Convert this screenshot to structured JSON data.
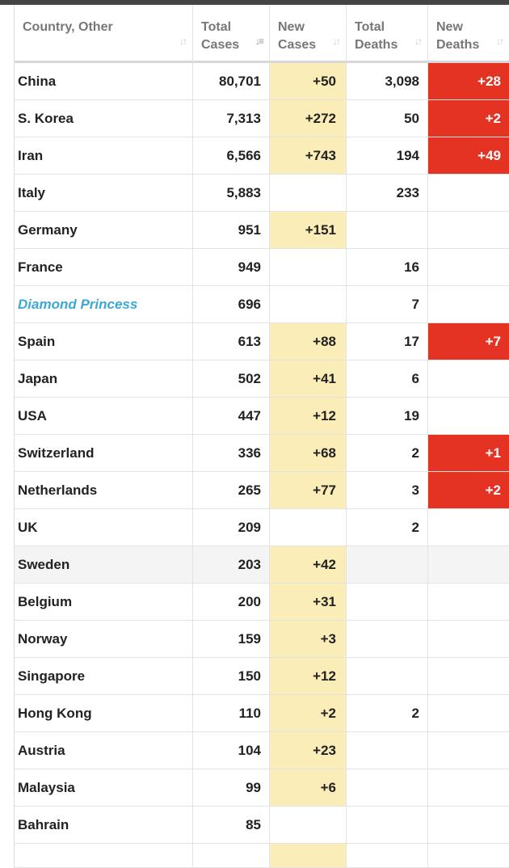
{
  "header": {
    "country": "Country, Other",
    "total_cases": "Total Cases",
    "new_cases": "New Cases",
    "total_deaths": "Total Deaths",
    "new_deaths": "New Deaths"
  },
  "colors": {
    "new_cases_bg": "#fbedb8",
    "new_deaths_bg": "#e53323",
    "link": "#3ba8d6"
  },
  "rows": [
    {
      "country": "China",
      "total_cases": "80,701",
      "new_cases": "+50",
      "total_deaths": "3,098",
      "new_deaths": "+28"
    },
    {
      "country": "S. Korea",
      "total_cases": "7,313",
      "new_cases": "+272",
      "total_deaths": "50",
      "new_deaths": "+2"
    },
    {
      "country": "Iran",
      "total_cases": "6,566",
      "new_cases": "+743",
      "total_deaths": "194",
      "new_deaths": "+49"
    },
    {
      "country": "Italy",
      "total_cases": "5,883",
      "new_cases": "",
      "total_deaths": "233",
      "new_deaths": ""
    },
    {
      "country": "Germany",
      "total_cases": "951",
      "new_cases": "+151",
      "total_deaths": "",
      "new_deaths": ""
    },
    {
      "country": "France",
      "total_cases": "949",
      "new_cases": "",
      "total_deaths": "16",
      "new_deaths": ""
    },
    {
      "country": "Diamond Princess",
      "total_cases": "696",
      "new_cases": "",
      "total_deaths": "7",
      "new_deaths": "",
      "link": true
    },
    {
      "country": "Spain",
      "total_cases": "613",
      "new_cases": "+88",
      "total_deaths": "17",
      "new_deaths": "+7"
    },
    {
      "country": "Japan",
      "total_cases": "502",
      "new_cases": "+41",
      "total_deaths": "6",
      "new_deaths": ""
    },
    {
      "country": "USA",
      "total_cases": "447",
      "new_cases": "+12",
      "total_deaths": "19",
      "new_deaths": ""
    },
    {
      "country": "Switzerland",
      "total_cases": "336",
      "new_cases": "+68",
      "total_deaths": "2",
      "new_deaths": "+1"
    },
    {
      "country": "Netherlands",
      "total_cases": "265",
      "new_cases": "+77",
      "total_deaths": "3",
      "new_deaths": "+2"
    },
    {
      "country": "UK",
      "total_cases": "209",
      "new_cases": "",
      "total_deaths": "2",
      "new_deaths": ""
    },
    {
      "country": "Sweden",
      "total_cases": "203",
      "new_cases": "+42",
      "total_deaths": "",
      "new_deaths": "",
      "highlight": true
    },
    {
      "country": "Belgium",
      "total_cases": "200",
      "new_cases": "+31",
      "total_deaths": "",
      "new_deaths": ""
    },
    {
      "country": "Norway",
      "total_cases": "159",
      "new_cases": "+3",
      "total_deaths": "",
      "new_deaths": ""
    },
    {
      "country": "Singapore",
      "total_cases": "150",
      "new_cases": "+12",
      "total_deaths": "",
      "new_deaths": ""
    },
    {
      "country": "Hong Kong",
      "total_cases": "110",
      "new_cases": "+2",
      "total_deaths": "2",
      "new_deaths": ""
    },
    {
      "country": "Austria",
      "total_cases": "104",
      "new_cases": "+23",
      "total_deaths": "",
      "new_deaths": ""
    },
    {
      "country": "Malaysia",
      "total_cases": "99",
      "new_cases": "+6",
      "total_deaths": "",
      "new_deaths": ""
    },
    {
      "country": "Bahrain",
      "total_cases": "85",
      "new_cases": "",
      "total_deaths": "",
      "new_deaths": ""
    }
  ]
}
